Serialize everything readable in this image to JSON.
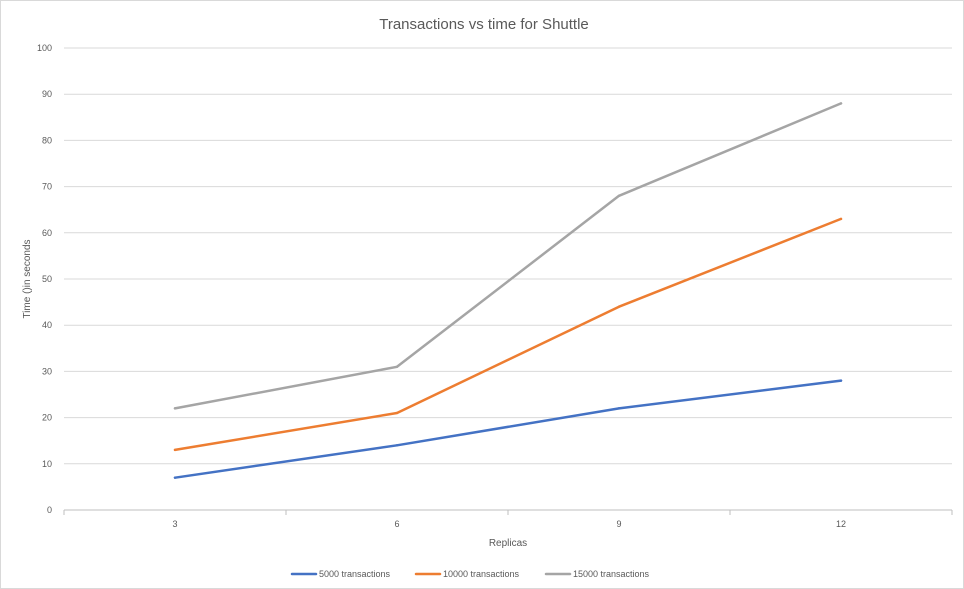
{
  "chart_data": {
    "type": "line",
    "title": "Transactions vs time for Shuttle",
    "xlabel": "Replicas",
    "ylabel": "Time ()in seconds",
    "categories": [
      "3",
      "6",
      "9",
      "12"
    ],
    "ylim": [
      0,
      100
    ],
    "yticks": [
      "0",
      "10",
      "20",
      "30",
      "40",
      "50",
      "60",
      "70",
      "80",
      "90",
      "100"
    ],
    "grid": true,
    "legend_position": "bottom",
    "series": [
      {
        "name": "5000 transactions",
        "color": "#4472c4",
        "values": [
          7,
          14,
          22,
          28
        ]
      },
      {
        "name": "10000 transactions",
        "color": "#ed7d31",
        "values": [
          13,
          21,
          44,
          63
        ]
      },
      {
        "name": "15000 transactions",
        "color": "#a5a5a5",
        "values": [
          22,
          31,
          68,
          88
        ]
      }
    ]
  }
}
